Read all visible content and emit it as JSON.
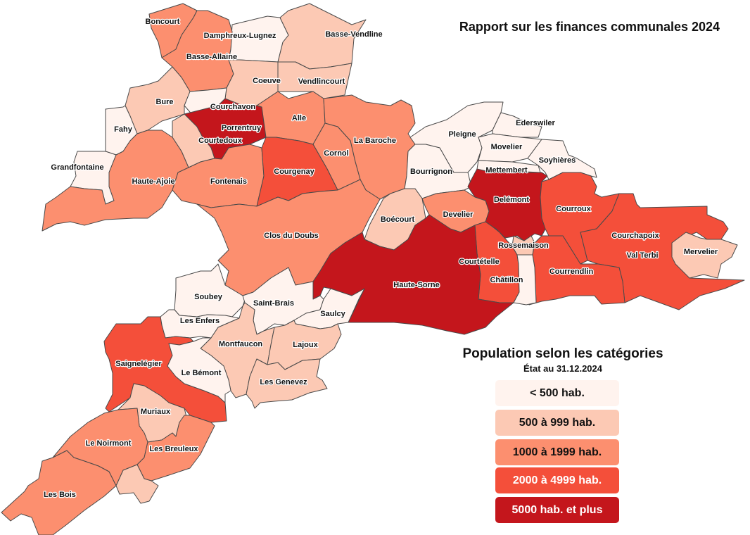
{
  "title": "Rapport sur les finances communales 2024",
  "legend": {
    "title": "Population selon les catégories",
    "subtitle": "État au 31.12.2024",
    "categories": [
      {
        "label": "< 500 hab.",
        "color": "#fff3ee",
        "text_color": "#111111"
      },
      {
        "label": "500 à 999 hab.",
        "color": "#fcc9b4",
        "text_color": "#111111"
      },
      {
        "label": "1000 à 1999 hab.",
        "color": "#fc8f6f",
        "text_color": "#111111"
      },
      {
        "label": "2000 à 4999 hab.",
        "color": "#f44f3a",
        "text_color": "#ffffff"
      },
      {
        "label": "5000 hab. et plus",
        "color": "#c4161c",
        "text_color": "#ffffff"
      }
    ]
  },
  "communes": [
    {
      "name": "Boncourt",
      "category": 2
    },
    {
      "name": "Damphreux-Lugnez",
      "category": 0
    },
    {
      "name": "Basse-Vendline",
      "category": 1
    },
    {
      "name": "Basse-Allaine",
      "category": 2
    },
    {
      "name": "Coeuve",
      "category": 1
    },
    {
      "name": "Vendlincourt",
      "category": 1
    },
    {
      "name": "Bure",
      "category": 1
    },
    {
      "name": "Courchavon",
      "category": 0
    },
    {
      "name": "Fahy",
      "category": 0
    },
    {
      "name": "Porrentruy",
      "category": 4
    },
    {
      "name": "Alle",
      "category": 2
    },
    {
      "name": "Courtedoux",
      "category": 1
    },
    {
      "name": "La Baroche",
      "category": 2
    },
    {
      "name": "Cornol",
      "category": 2
    },
    {
      "name": "Grandfontaine",
      "category": 0
    },
    {
      "name": "Haute-Ajoie",
      "category": 2
    },
    {
      "name": "Fontenais",
      "category": 2
    },
    {
      "name": "Courgenay",
      "category": 3
    },
    {
      "name": "Pleigne",
      "category": 0
    },
    {
      "name": "Ederswiler",
      "category": 0
    },
    {
      "name": "Movelier",
      "category": 0
    },
    {
      "name": "Soyhières",
      "category": 0
    },
    {
      "name": "Mettembert",
      "category": 0
    },
    {
      "name": "Bourrignon",
      "category": 0
    },
    {
      "name": "Delémont",
      "category": 4
    },
    {
      "name": "Courroux",
      "category": 3
    },
    {
      "name": "Develier",
      "category": 2
    },
    {
      "name": "Boécourt",
      "category": 1
    },
    {
      "name": "Clos du Doubs",
      "category": 2
    },
    {
      "name": "Courchapoix",
      "category": 0
    },
    {
      "name": "Rossemaison",
      "category": 1
    },
    {
      "name": "Val Terbi",
      "category": 3
    },
    {
      "name": "Mervelier",
      "category": 1
    },
    {
      "name": "Courtételle",
      "category": 3
    },
    {
      "name": "Courrendlin",
      "category": 3
    },
    {
      "name": "Châtillon",
      "category": 0
    },
    {
      "name": "Haute-Sorne",
      "category": 4
    },
    {
      "name": "Soubey",
      "category": 0
    },
    {
      "name": "Saint-Brais",
      "category": 0
    },
    {
      "name": "Saulcy",
      "category": 0
    },
    {
      "name": "Les Enfers",
      "category": 0
    },
    {
      "name": "Montfaucon",
      "category": 1
    },
    {
      "name": "Lajoux",
      "category": 1
    },
    {
      "name": "Saignelégier",
      "category": 3
    },
    {
      "name": "Le Bémont",
      "category": 0
    },
    {
      "name": "Les Genevez",
      "category": 1
    },
    {
      "name": "Muriaux",
      "category": 1
    },
    {
      "name": "Le Noirmont",
      "category": 2
    },
    {
      "name": "Les Breuleux",
      "category": 2
    },
    {
      "name": "Les Bois",
      "category": 2
    },
    {
      "name": "",
      "category": 1
    }
  ]
}
